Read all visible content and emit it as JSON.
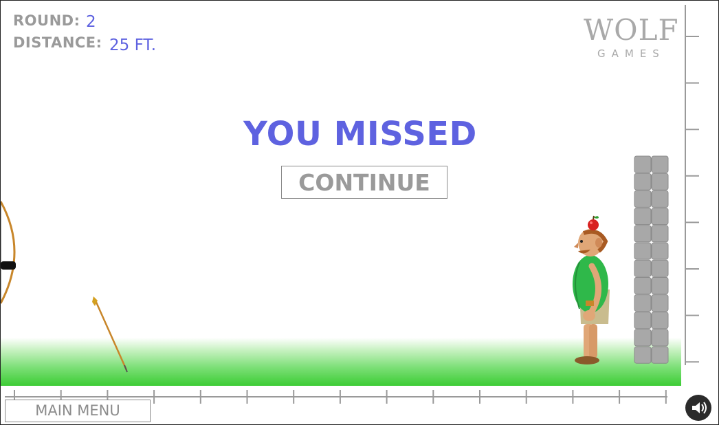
{
  "hud": {
    "round_label": "ROUND:",
    "round_value": "2",
    "distance_label": "DISTANCE:",
    "distance_value": "25 FT."
  },
  "logo": {
    "wolf": "WOLF",
    "games": "GAMES"
  },
  "result": {
    "title": "YOU MISSED",
    "continue_label": "CONTINUE"
  },
  "menu": {
    "main_menu_label": "MAIN MENU"
  },
  "icons": {
    "sound": "speaker-icon",
    "apple": "apple-icon"
  },
  "colors": {
    "accent": "#5e62e0",
    "label": "#9a9a9a",
    "grass": "#3ccc34",
    "shirt": "#2fb84a",
    "brick": "#a8a8a8"
  }
}
